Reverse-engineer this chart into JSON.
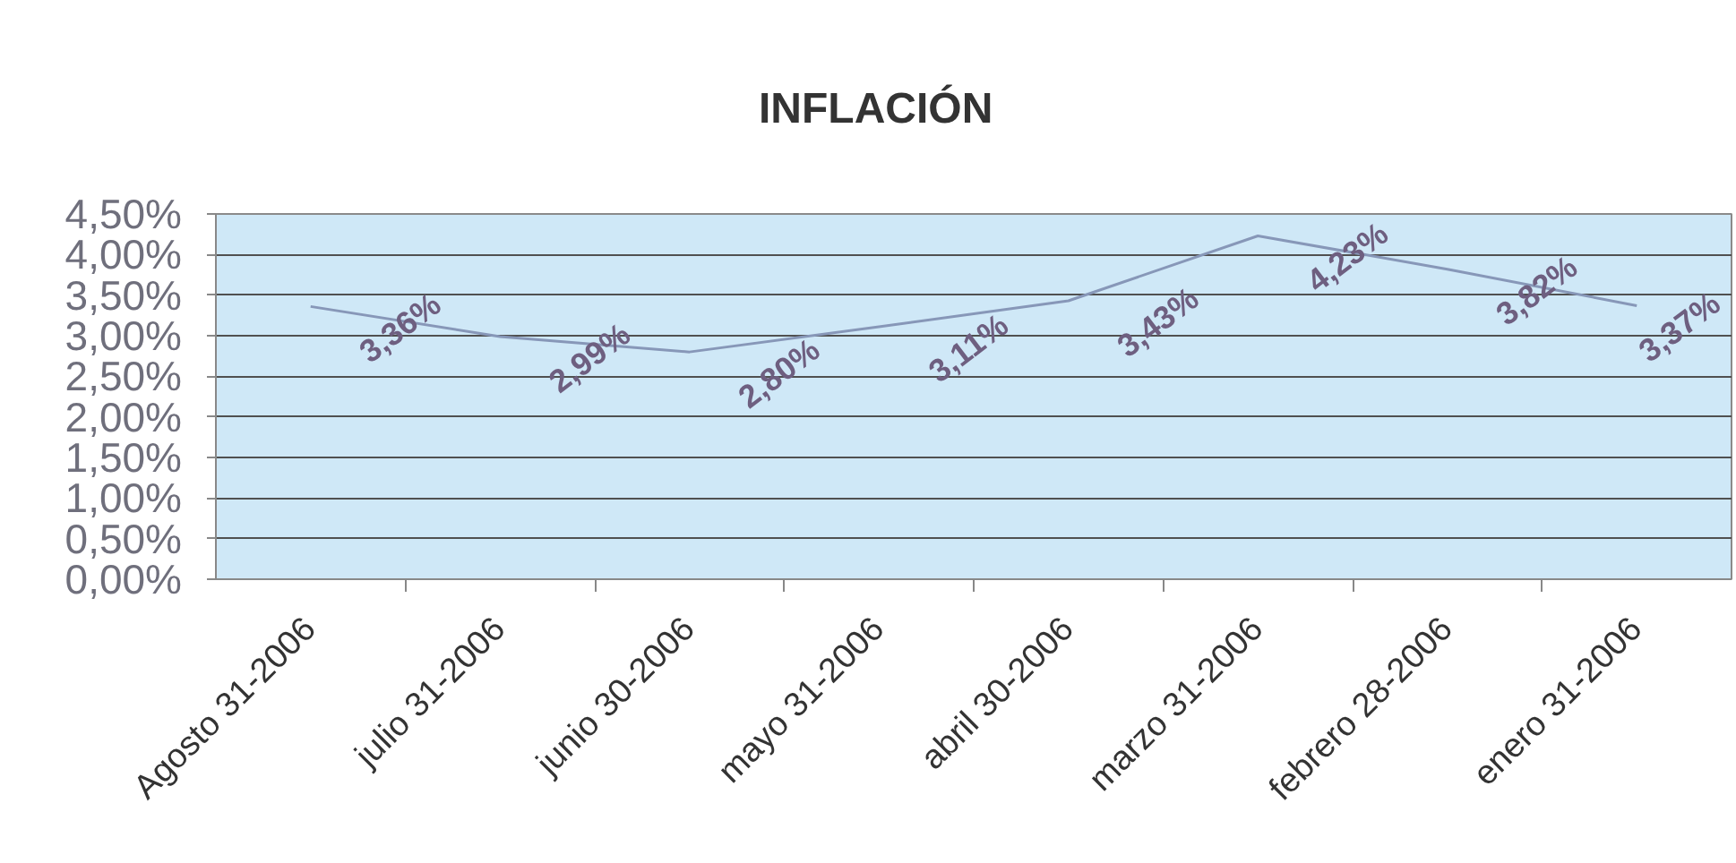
{
  "chart_data": {
    "type": "line",
    "title": "INFLACIÓN",
    "categories": [
      "Agosto 31-2006",
      "julio 31-2006",
      "junio 30-2006",
      "mayo 31-2006",
      "abril 30-2006",
      "marzo 31-2006",
      "febrero 28-2006",
      "enero 31-2006"
    ],
    "values": [
      3.36,
      2.99,
      2.8,
      3.11,
      3.43,
      4.23,
      3.82,
      3.37
    ],
    "color": "#8797b8",
    "value_labels": [
      "3,36%",
      "2,99%",
      "2,80%",
      "3,11%",
      "3,43%",
      "4,23%",
      "3,82%",
      "3,37%"
    ],
    "ylim": [
      0,
      4.5
    ],
    "yticks": [
      {
        "value": 0,
        "label": "0,00%"
      },
      {
        "value": 0.5,
        "label": "0,50%"
      },
      {
        "value": 1,
        "label": "1,00%"
      },
      {
        "value": 1.5,
        "label": "1,50%"
      },
      {
        "value": 2,
        "label": "2,00%"
      },
      {
        "value": 2.5,
        "label": "2,50%"
      },
      {
        "value": 3,
        "label": "3,00%"
      },
      {
        "value": 3.5,
        "label": "3,50%"
      },
      {
        "value": 4,
        "label": "4,00%"
      },
      {
        "value": 4.5,
        "label": "4,50%"
      }
    ],
    "grid": "y",
    "line_style": "solid"
  }
}
